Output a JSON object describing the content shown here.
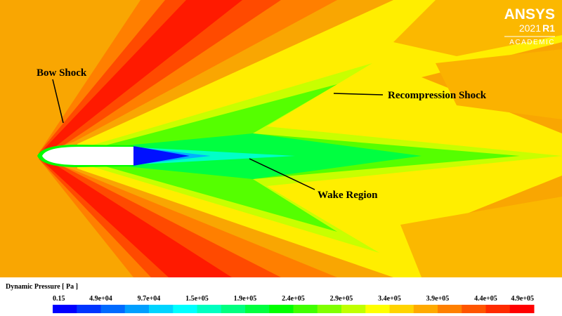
{
  "annotations": {
    "bow_shock": "Bow Shock",
    "recompression_shock": "Recompression Shock",
    "wake_region": "Wake Region"
  },
  "logo": {
    "brand": "ANSYS",
    "version": "2021",
    "release": "R1",
    "edition": "ACADEMIC"
  },
  "legend": {
    "title": "Dynamic Pressure [ Pa ]",
    "labels": [
      "0.15",
      "4.9e+04",
      "9.7e+04",
      "1.5e+05",
      "1.9e+05",
      "2.4e+05",
      "2.9e+05",
      "3.4e+05",
      "3.9e+05",
      "4.4e+05",
      "4.9e+05"
    ],
    "colors": [
      "#0000ff",
      "#0035ff",
      "#006aff",
      "#009fff",
      "#00d4ff",
      "#00ffff",
      "#00ffc0",
      "#00ff80",
      "#00ff40",
      "#00ff00",
      "#40ff00",
      "#80ff00",
      "#c0ff00",
      "#ffff00",
      "#ffd400",
      "#ffaa00",
      "#ff8000",
      "#ff5500",
      "#ff2b00",
      "#ff0000"
    ]
  }
}
